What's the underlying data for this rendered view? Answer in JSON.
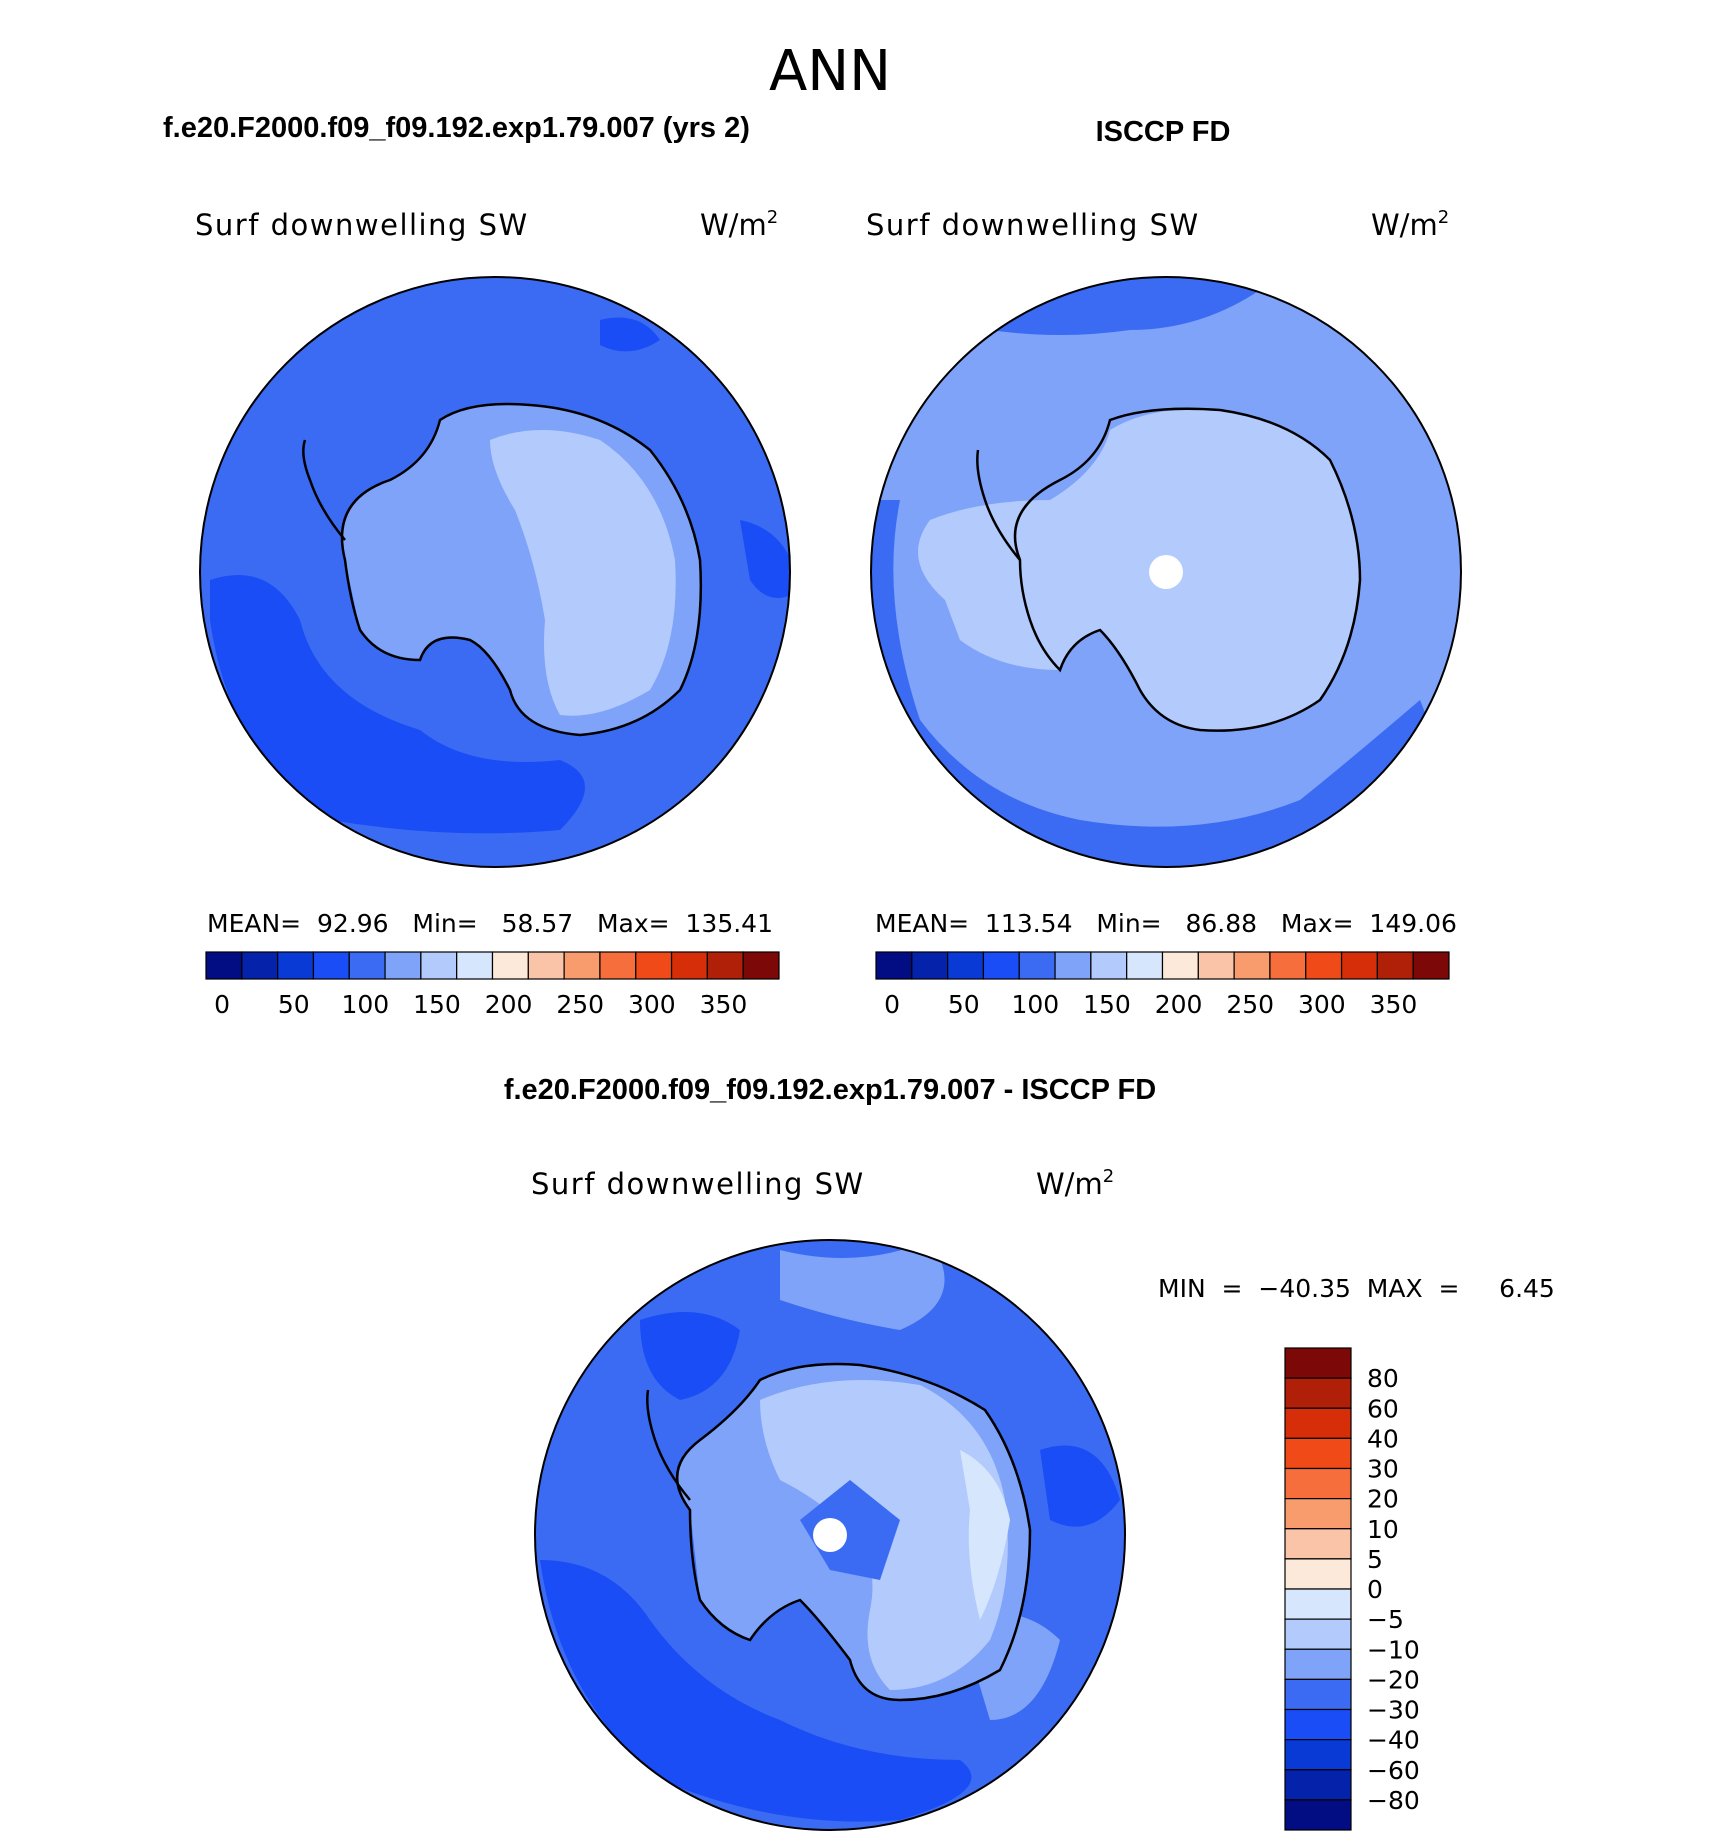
{
  "page": {
    "title": "ANN"
  },
  "panels": [
    {
      "title": "f.e20.F2000.f09_f09.192.exp1.79.007 (yrs 2)",
      "variable": "Surf downwelling SW",
      "units_base": "W/m",
      "units_exp": "2",
      "stats_text": "MEAN=  92.96   Min=   58.57   Max=  135.41"
    },
    {
      "title": "ISCCP FD",
      "variable": "Surf downwelling SW",
      "units_base": "W/m",
      "units_exp": "2",
      "stats_text": "MEAN=  113.54   Min=   86.88   Max=  149.06"
    },
    {
      "title": "f.e20.F2000.f09_f09.192.exp1.79.007 - ISCCP FD",
      "variable": "Surf downwelling SW",
      "units_base": "W/m",
      "units_exp": "2",
      "stats_text": "MIN  =  −40.35  MAX  =     6.45"
    }
  ],
  "colorbars": {
    "abs_colors": [
      "#020c83",
      "#0523aa",
      "#0a3ad6",
      "#1a4df5",
      "#3a6bf2",
      "#7ea3f8",
      "#b3cafc",
      "#d6e6fd",
      "#fde9d9",
      "#f9c4a8",
      "#f89b6d",
      "#f66e3c",
      "#ef4a18",
      "#d52e08",
      "#b01f08",
      "#7d0808"
    ],
    "abs_labels": [
      "0",
      "50",
      "100",
      "150",
      "200",
      "250",
      "300",
      "350"
    ],
    "diff_colors": [
      "#020c83",
      "#0523aa",
      "#0a3ad6",
      "#1a4df5",
      "#3a6bf2",
      "#7ea3f8",
      "#b3cafc",
      "#d6e6fd",
      "#fde9d9",
      "#f9c4a8",
      "#f89b6d",
      "#f66e3c",
      "#ef4a18",
      "#d52e08",
      "#b01f08",
      "#7d0808"
    ],
    "diff_labels": [
      "−80",
      "−60",
      "−40",
      "−30",
      "−20",
      "−10",
      "−5",
      "0",
      "5",
      "10",
      "20",
      "30",
      "40",
      "60",
      "80"
    ]
  },
  "legend_colors": {
    "dark": "#1a4df5",
    "mid": "#3a6bf2",
    "light": "#7ea3f8",
    "pale": "#b3cafc",
    "palest": "#d6e6fd"
  }
}
